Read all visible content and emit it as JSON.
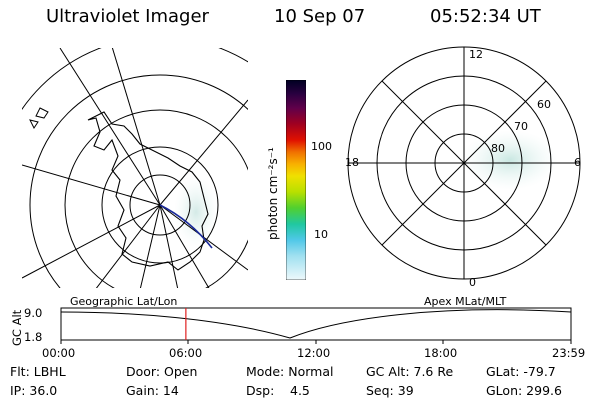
{
  "header": {
    "instrument": "Ultraviolet Imager",
    "date": "10 Sep 07",
    "time": "05:52:34 UT"
  },
  "colorbar": {
    "unit_label": "photon cm⁻²s⁻¹",
    "ticks": [
      "100",
      "10"
    ],
    "colors": [
      "#000033",
      "#1a0038",
      "#3a0043",
      "#5a0048",
      "#7a0040",
      "#a00020",
      "#c00010",
      "#e01000",
      "#f04000",
      "#f87000",
      "#f8a000",
      "#f8c800",
      "#e8e000",
      "#c0e000",
      "#80e000",
      "#40d840",
      "#20c8a0",
      "#40c0e0",
      "#80d8f0",
      "#c8eef8",
      "#eef8fb"
    ]
  },
  "polar_plot": {
    "labels": {
      "top": "12",
      "left": "18",
      "right": "6",
      "bottom": "0"
    },
    "lat_labels": [
      "60",
      "70",
      "80"
    ]
  },
  "timeline": {
    "left_title": "Geographic Lat/Lon",
    "right_title": "Apex MLat/MLT",
    "axis_title": "GC Alt",
    "y_ticks": [
      "9.0",
      "1.8"
    ],
    "x_ticks": [
      "00:00",
      "06:00",
      "12:00",
      "18:00",
      "23:59"
    ],
    "current_time_hours": 5.876
  },
  "footer": {
    "flt": "Flt: LBHL",
    "ip": "IP: 36.0",
    "door": "Door: Open",
    "gain": "Gain: 14",
    "mode": "Mode: Normal",
    "dsp_label": "Dsp:",
    "dsp_value": "4.5",
    "gc_alt": "GC Alt: 7.6 Re",
    "seq": "Seq: 39",
    "glat": "GLat: -79.7",
    "glon": "GLon: 299.6"
  }
}
